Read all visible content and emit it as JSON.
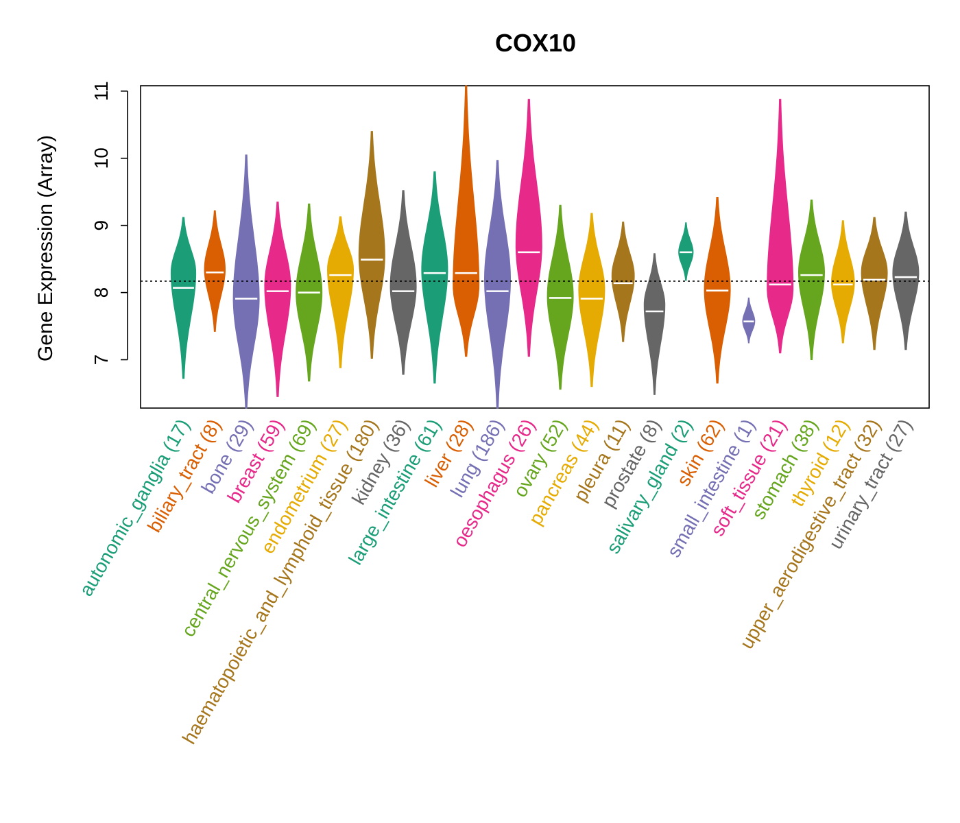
{
  "chart_data": {
    "type": "violin",
    "title": "COX10",
    "ylabel": "Gene Expression (Array)",
    "xlabel": "",
    "ylim": [
      6.28,
      11.08
    ],
    "yticks": [
      7,
      8,
      9,
      10,
      11
    ],
    "reference_line": 8.17,
    "grid": false,
    "legend": "none",
    "categories": [
      {
        "name": "autonomic_ganglia",
        "n": 17,
        "label": "autonomic_ganglia (17)",
        "color": "#1B9E77",
        "min": 6.72,
        "max": 9.12,
        "median": 8.07,
        "peak": 8.3
      },
      {
        "name": "biliary_tract",
        "n": 8,
        "label": "biliary_tract (8)",
        "color": "#D95F02",
        "min": 7.42,
        "max": 9.22,
        "median": 8.3,
        "peak": 8.35
      },
      {
        "name": "bone",
        "n": 29,
        "label": "bone (29)",
        "color": "#7570B3",
        "min": 6.28,
        "max": 10.05,
        "median": 7.91,
        "peak": 7.9
      },
      {
        "name": "breast",
        "n": 59,
        "label": "breast (59)",
        "color": "#E7298A",
        "min": 6.45,
        "max": 9.35,
        "median": 8.02,
        "peak": 8.1
      },
      {
        "name": "central_nervous_system",
        "n": 69,
        "label": "central_nervous_system (69)",
        "color": "#66A61E",
        "min": 6.68,
        "max": 9.32,
        "median": 8.0,
        "peak": 8.0
      },
      {
        "name": "endometrium",
        "n": 27,
        "label": "endometrium (27)",
        "color": "#E6AB02",
        "min": 6.88,
        "max": 9.13,
        "median": 8.26,
        "peak": 8.35
      },
      {
        "name": "haematopoietic_and_lymphoid_tissue",
        "n": 180,
        "label": "haematopoietic_and_lymphoid_tissue (180)",
        "color": "#A6761D",
        "min": 7.02,
        "max": 10.4,
        "median": 8.49,
        "peak": 8.55
      },
      {
        "name": "kidney",
        "n": 36,
        "label": "kidney (36)",
        "color": "#666666",
        "min": 6.78,
        "max": 9.52,
        "median": 8.02,
        "peak": 8.1
      },
      {
        "name": "large_intestine",
        "n": 61,
        "label": "large_intestine (61)",
        "color": "#1B9E77",
        "min": 6.65,
        "max": 9.8,
        "median": 8.29,
        "peak": 8.35
      },
      {
        "name": "liver",
        "n": 28,
        "label": "liver (28)",
        "color": "#D95F02",
        "min": 7.05,
        "max": 11.08,
        "median": 8.29,
        "peak": 8.1
      },
      {
        "name": "lung",
        "n": 186,
        "label": "lung (186)",
        "color": "#7570B3",
        "min": 6.28,
        "max": 9.97,
        "median": 8.02,
        "peak": 8.2
      },
      {
        "name": "oesophagus",
        "n": 26,
        "label": "oesophagus (26)",
        "color": "#E7298A",
        "min": 7.05,
        "max": 10.88,
        "median": 8.6,
        "peak": 8.7
      },
      {
        "name": "ovary",
        "n": 52,
        "label": "ovary (52)",
        "color": "#66A61E",
        "min": 6.56,
        "max": 9.3,
        "median": 7.92,
        "peak": 7.95
      },
      {
        "name": "pancreas",
        "n": 44,
        "label": "pancreas (44)",
        "color": "#E6AB02",
        "min": 6.6,
        "max": 9.18,
        "median": 7.91,
        "peak": 8.05
      },
      {
        "name": "pleura",
        "n": 11,
        "label": "pleura (11)",
        "color": "#A6761D",
        "min": 7.27,
        "max": 9.05,
        "median": 8.14,
        "peak": 8.25
      },
      {
        "name": "prostate",
        "n": 8,
        "label": "prostate (8)",
        "color": "#666666",
        "min": 6.48,
        "max": 8.58,
        "median": 7.72,
        "peak": 7.82
      },
      {
        "name": "salivary_gland",
        "n": 2,
        "label": "salivary_gland (2)",
        "color": "#1B9E77",
        "min": 8.18,
        "max": 9.04,
        "median": 8.6,
        "peak": 8.6
      },
      {
        "name": "skin",
        "n": 62,
        "label": "skin (62)",
        "color": "#D95F02",
        "min": 6.65,
        "max": 9.42,
        "median": 8.03,
        "peak": 8.05
      },
      {
        "name": "small_intestine",
        "n": 1,
        "label": "small_intestine (1)",
        "color": "#7570B3",
        "min": 7.25,
        "max": 7.92,
        "median": 7.57,
        "peak": 7.57
      },
      {
        "name": "soft_tissue",
        "n": 21,
        "label": "soft_tissue (21)",
        "color": "#E7298A",
        "min": 7.1,
        "max": 10.88,
        "median": 8.12,
        "peak": 8.05
      },
      {
        "name": "stomach",
        "n": 38,
        "label": "stomach (38)",
        "color": "#66A61E",
        "min": 7.0,
        "max": 9.38,
        "median": 8.26,
        "peak": 8.3
      },
      {
        "name": "thyroid",
        "n": 12,
        "label": "thyroid (12)",
        "color": "#E6AB02",
        "min": 7.25,
        "max": 9.07,
        "median": 8.12,
        "peak": 8.15
      },
      {
        "name": "upper_aerodigestive_tract",
        "n": 32,
        "label": "upper_aerodigestive_tract (32)",
        "color": "#A6761D",
        "min": 7.15,
        "max": 9.12,
        "median": 8.19,
        "peak": 8.3
      },
      {
        "name": "urinary_tract",
        "n": 27,
        "label": "urinary_tract (27)",
        "color": "#666666",
        "min": 7.15,
        "max": 9.2,
        "median": 8.23,
        "peak": 8.3
      }
    ]
  }
}
